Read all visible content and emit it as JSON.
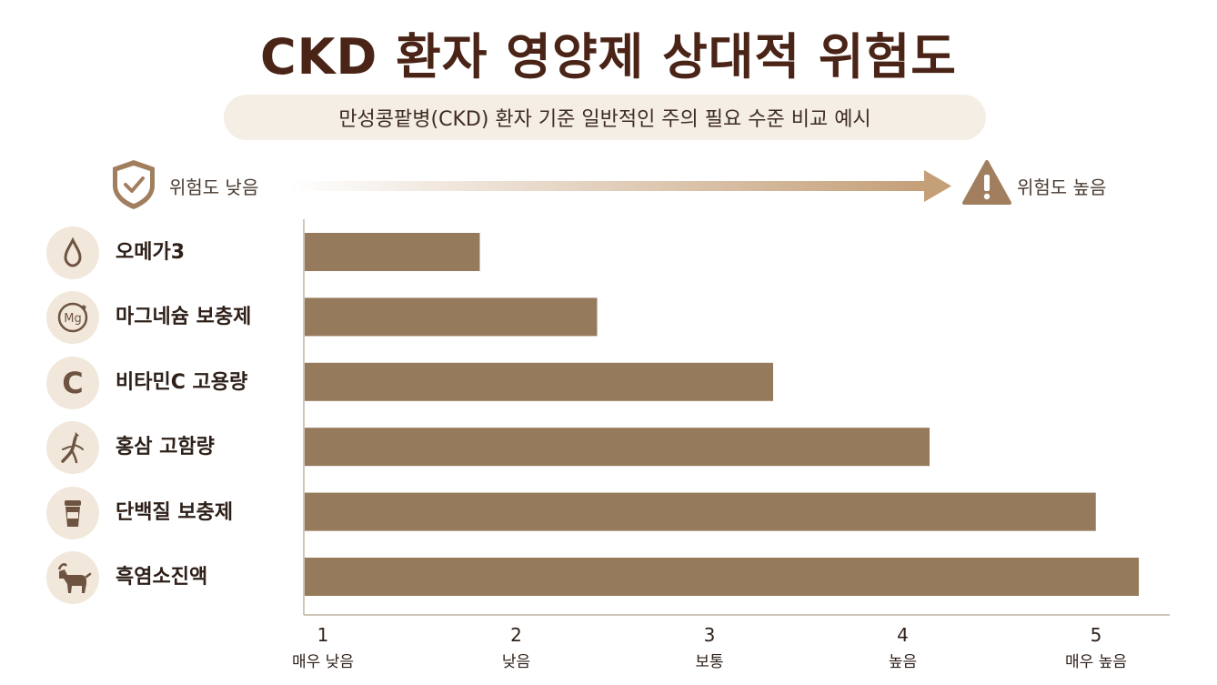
{
  "title": "CKD 환자 영양제 상대적 위험도",
  "subtitle": "만성콩팥병(CKD) 환자 기준 일반적인 주의 필요 수준 비교 예시",
  "scale": {
    "low_label": "위험도 낮음",
    "high_label": "위험도 높음",
    "low_icon": "shield-check-icon",
    "high_icon": "warning-triangle-icon"
  },
  "colors": {
    "bar": "#957a5b",
    "icon_bg": "#f1e8db",
    "title": "#4a2416",
    "accent": "#c49f78"
  },
  "items": [
    {
      "label": "오메가3",
      "icon": "water-drop-icon"
    },
    {
      "label": "마그네슘 보충제",
      "icon": "magnesium-icon",
      "icon_text": "Mg"
    },
    {
      "label": "비타민C 고용량",
      "icon": "vitamin-c-icon",
      "icon_text": "C"
    },
    {
      "label": "홍삼 고함량",
      "icon": "ginseng-root-icon"
    },
    {
      "label": "단백질 보충제",
      "icon": "protein-cup-icon"
    },
    {
      "label": "흑염소진액",
      "icon": "goat-icon"
    }
  ],
  "chart_data": {
    "type": "bar",
    "orientation": "horizontal",
    "categories": [
      "오메가3",
      "마그네슘 보충제",
      "비타민C 고용량",
      "홍삼 고함량",
      "단백질 보충제",
      "흑염소진액"
    ],
    "values": [
      1.9,
      2.5,
      3.4,
      4.2,
      5.05,
      5.27
    ],
    "xlim": [
      1,
      5.3
    ],
    "xticks": [
      {
        "value": 1,
        "num": "1",
        "label": "매우 낮음"
      },
      {
        "value": 2,
        "num": "2",
        "label": "낮음"
      },
      {
        "value": 3,
        "num": "3",
        "label": "보통"
      },
      {
        "value": 4,
        "num": "4",
        "label": "높음"
      },
      {
        "value": 5,
        "num": "5",
        "label": "매우 높음"
      }
    ],
    "grid": false
  }
}
